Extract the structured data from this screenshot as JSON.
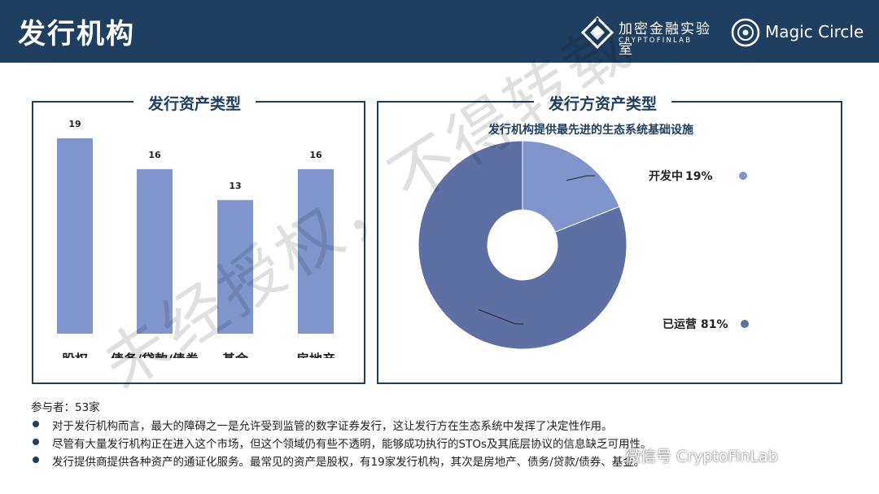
{
  "header": {
    "title": "发行机构",
    "brand_cn": "加密金融实验室",
    "brand_en": "CRYPTOFINLAB",
    "brand2": "Magic Circle"
  },
  "left_panel": {
    "title": "发行资产类型"
  },
  "right_panel": {
    "title": "发行方资产类型",
    "subtitle": "发行机构提供最先进的生态系统基础设施"
  },
  "chart_data": [
    {
      "type": "bar",
      "title": "发行资产类型",
      "categories": [
        "股权",
        "债务/贷款/债券",
        "基金",
        "房地产"
      ],
      "values": [
        19,
        16,
        13,
        16
      ],
      "ylim": [
        0,
        19
      ],
      "color": "#7f95cc"
    },
    {
      "type": "pie",
      "title": "发行方资产类型",
      "subtitle": "发行机构提供最先进的生态系统基础设施",
      "labels": [
        "开发中",
        "已运营"
      ],
      "values": [
        19,
        81
      ],
      "value_labels": [
        "19%",
        "81%"
      ],
      "colors": [
        "#7f95cc",
        "#5e6fa3"
      ],
      "donut": true
    }
  ],
  "footer": {
    "participants": "参与者：53家",
    "bullets": [
      "对于发行机构而言，最大的障碍之一是允许受到监管的数字证券发行，这让发行方在生态系统中发挥了决定性作用。",
      "尽管有大量发行机构正在进入这个市场，但这个领域仍有些不透明，能够成功执行的STOs及其底层协议的信息缺乏可用性。",
      "发行提供商提供各种资产的通证化服务。最常见的资产是股权，有19家发行机构，其次是房地产、债务/贷款/债券、基金。"
    ]
  },
  "watermark": {
    "text": "未经授权，不得转载",
    "wechat": "微信号 CryptoFinLab"
  },
  "colors": {
    "header": "#1f3f60",
    "bar": "#7f95cc",
    "donut_dark": "#5e6fa3",
    "donut_light": "#7f95cc"
  }
}
